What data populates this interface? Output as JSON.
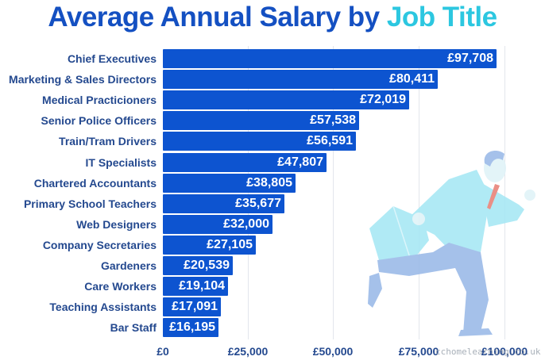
{
  "title": {
    "main": "Average Annual Salary by ",
    "accent": "Job Title"
  },
  "colors": {
    "bar": "#0d54d0",
    "title": "#1450c2",
    "title_accent": "#2cc7e0",
    "label": "#24498f",
    "grid": "#e3e6ec"
  },
  "chart_data": {
    "type": "bar",
    "orientation": "horizontal",
    "title": "Average Annual Salary by Job Title",
    "xlabel": "",
    "ylabel": "",
    "currency": "GBP",
    "categories": [
      "Chief Executives",
      "Marketing & Sales Directors",
      "Medical Practicioners",
      "Senior Police Officers",
      "Train/Tram Drivers",
      "IT Specialists",
      "Chartered Accountants",
      "Primary School Teachers",
      "Web Designers",
      "Company Secretaries",
      "Gardeners",
      "Care Workers",
      "Teaching Assistants",
      "Bar Staff"
    ],
    "values": [
      97708,
      80411,
      72019,
      57538,
      56591,
      47807,
      38805,
      35677,
      32000,
      27105,
      20539,
      19104,
      17091,
      16195
    ],
    "value_labels": [
      "£97,708",
      "£80,411",
      "£72,019",
      "£57,538",
      "£56,591",
      "£47,807",
      "£38,805",
      "£35,677",
      "£32,000",
      "£27,105",
      "£20,539",
      "£19,104",
      "£17,091",
      "£16,195"
    ],
    "x_ticks": [
      0,
      25000,
      50000,
      75000,
      100000
    ],
    "x_tick_labels": [
      "£0",
      "£25,000",
      "£50,000",
      "£75,000",
      "£100,000"
    ],
    "xlim": [
      0,
      100000
    ],
    "grid": "vertical gridlines at ticks",
    "legend": "none"
  },
  "illustration": "running-businessman-with-briefcase",
  "watermark": "cchomelearning.co.uk"
}
